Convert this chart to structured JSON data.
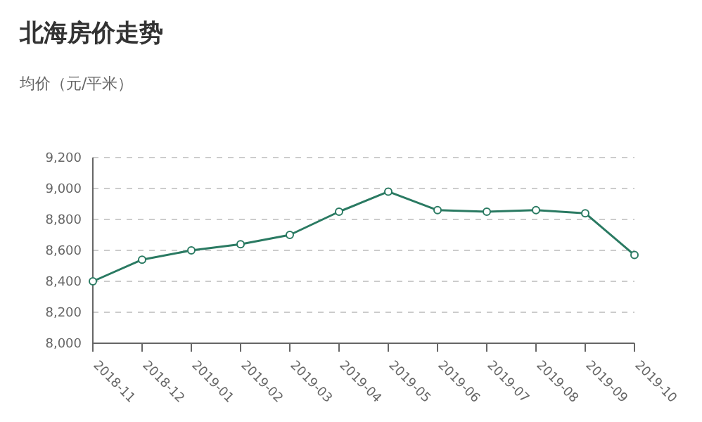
{
  "chart_data": {
    "type": "line",
    "title": "北海房价走势",
    "ylabel": "均价（元/平米）",
    "categories": [
      "2018-11",
      "2018-12",
      "2019-01",
      "2019-02",
      "2019-03",
      "2019-04",
      "2019-05",
      "2019-06",
      "2019-07",
      "2019-08",
      "2019-09",
      "2019-10"
    ],
    "series": [
      {
        "color": "#2a7a62",
        "values": [
          8400,
          8540,
          8600,
          8640,
          8700,
          8850,
          8980,
          8860,
          8850,
          8860,
          8840,
          8570
        ]
      }
    ],
    "ylim": [
      8000,
      9200
    ],
    "yticks": [
      {
        "value": 8000,
        "label": "8,000"
      },
      {
        "value": 8200,
        "label": "8,200"
      },
      {
        "value": 8400,
        "label": "8,400"
      },
      {
        "value": 8600,
        "label": "8,600"
      },
      {
        "value": 8800,
        "label": "8,800"
      },
      {
        "value": 9000,
        "label": "9,000"
      },
      {
        "value": 9200,
        "label": "9,200"
      }
    ],
    "grid": "y",
    "marker": "circle",
    "line_style": "solid",
    "legend": false
  }
}
